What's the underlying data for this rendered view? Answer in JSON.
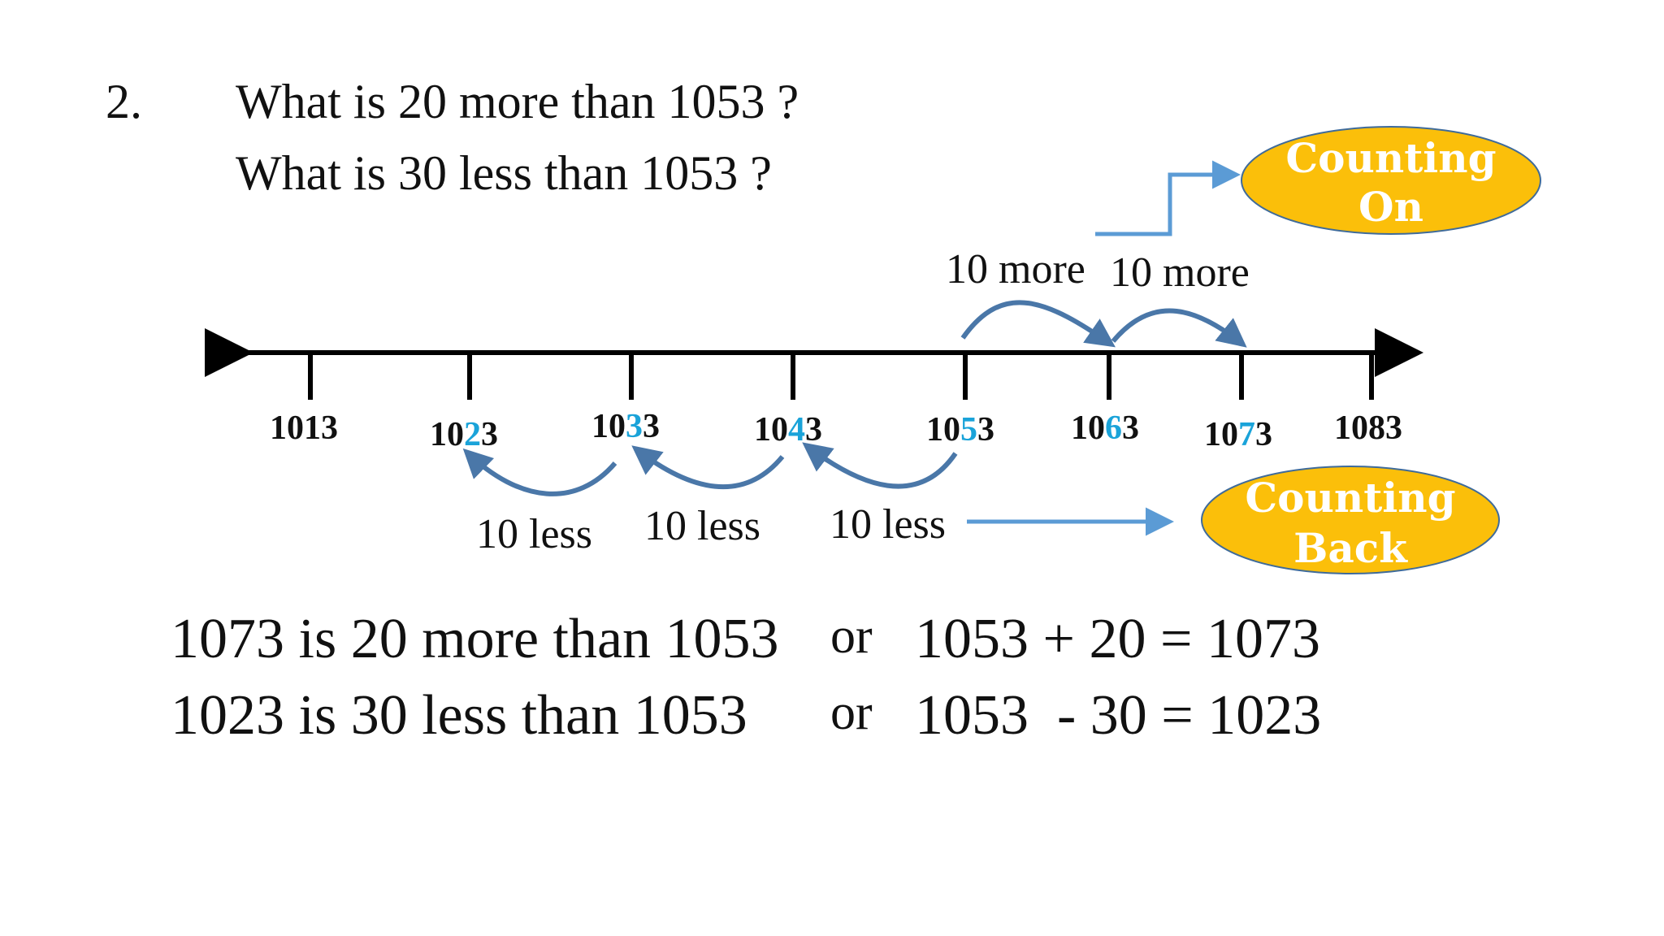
{
  "question": {
    "number": "2.",
    "line1": "What is 20 more than 1053 ?",
    "line2": "What is 30 less than 1053 ?"
  },
  "number_line": {
    "ticks": [
      {
        "pre": "10",
        "mid": "1",
        "post": "3",
        "highlight": false
      },
      {
        "pre": "10",
        "mid": "2",
        "post": "3",
        "highlight": true
      },
      {
        "pre": "10",
        "mid": "3",
        "post": "3",
        "highlight": true
      },
      {
        "pre": "10",
        "mid": "4",
        "post": "3",
        "highlight": true
      },
      {
        "pre": "10",
        "mid": "5",
        "post": "3",
        "highlight": true
      },
      {
        "pre": "10",
        "mid": "6",
        "post": "3",
        "highlight": true
      },
      {
        "pre": "10",
        "mid": "7",
        "post": "3",
        "highlight": true
      },
      {
        "pre": "10",
        "mid": "8",
        "post": "3",
        "highlight": false
      }
    ],
    "more_labels": [
      "10 more",
      "10 more"
    ],
    "less_labels": [
      "10 less",
      "10 less",
      "10 less"
    ]
  },
  "badges": {
    "counting_on": [
      "Counting",
      "On"
    ],
    "counting_back": [
      "Counting",
      "Back"
    ]
  },
  "statements": {
    "line1": "1073 is 20 more than 1053",
    "line2": "1023 is 30 less than 1053",
    "or1": "or",
    "or2": "or",
    "eq1": "1053 + 20 = 1073",
    "eq2": "1053  - 30 = 1023"
  },
  "colors": {
    "highlight": "#1aa3d9",
    "arrow": "#4a77a8",
    "connector": "#5b9bd5",
    "badge_fill": "#fbbf0a",
    "badge_stroke": "#3f6b9a"
  }
}
